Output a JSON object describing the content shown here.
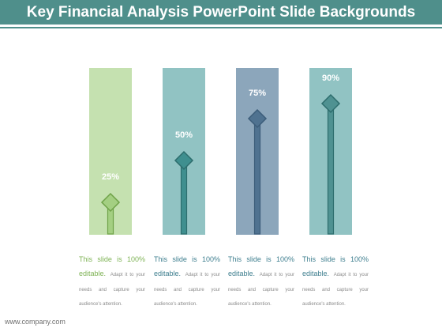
{
  "title": "Key Financial Analysis PowerPoint Slide Backgrounds",
  "colors": {
    "title_bar": "#4f8f8b",
    "col1_bg": "#c5e1b0",
    "col1_arrow": "#a4cf82",
    "col1_stroke": "#6fa248",
    "col2_bg": "#91c3c3",
    "col2_arrow": "#3f8f8f",
    "col2_stroke": "#2d6d6d",
    "col3_bg": "#8ca6bb",
    "col3_arrow": "#4f7290",
    "col3_stroke": "#2f526f",
    "col4_bg": "#91c3c3",
    "col4_arrow": "#4f9292",
    "col4_stroke": "#2d6d6d"
  },
  "chart_data": {
    "type": "bar",
    "categories": [
      "25%",
      "50%",
      "75%",
      "90%"
    ],
    "values": [
      25,
      50,
      75,
      90
    ],
    "ylim": [
      0,
      100
    ]
  },
  "items": [
    {
      "value": "25%",
      "heading": "This slide is 100% editable.",
      "body": "Adapt it to your needs and capture your audience's attention."
    },
    {
      "value": "50%",
      "heading": "This slide is 100% editable.",
      "body": "Adapt it to your needs and capture your audience's attention."
    },
    {
      "value": "75%",
      "heading": "This slide is 100% editable.",
      "body": "Adapt it to your needs and capture your audience's attention."
    },
    {
      "value": "90%",
      "heading": "This slide is 100% editable.",
      "body": "Adapt it to your needs and capture your audience's attention."
    }
  ],
  "footer": "www.company.com"
}
